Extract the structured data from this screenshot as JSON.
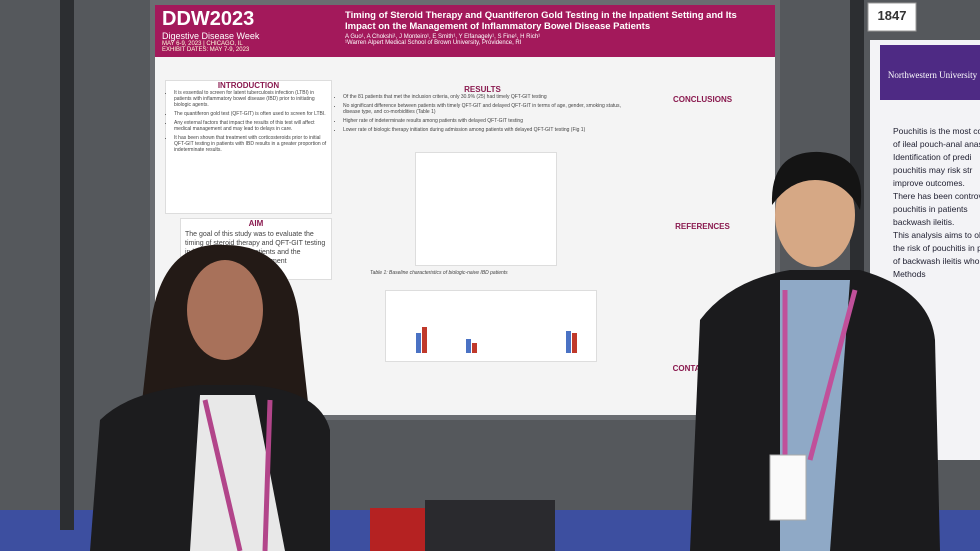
{
  "board_number": "1847",
  "poster": {
    "logo": {
      "brand": "DDW2023",
      "subtitle": "Digestive Disease Week",
      "dates": "MAY 6-9, 2023 | CHICAGO, IL",
      "exhibit": "EXHIBIT DATES: MAY 7-9, 2023"
    },
    "title": "Timing of Steroid Therapy and Quantiferon Gold Testing in the Inpatient Setting and Its Impact on the Management of Inflammatory Bowel Disease Patients",
    "authors": "A Guo¹, A Chokshi¹, J Monteiro¹, E Smith¹, Y Elfanagely¹, S Fine¹, H Rich¹",
    "affiliation": "¹Warren Alpert Medical School of Brown University, Providence, RI",
    "introduction": {
      "heading": "INTRODUCTION",
      "bullets": [
        "It is essential to screen for latent tuberculosis infection (LTBI) in patients with inflammatory bowel disease (IBD) prior to initiating biologic agents.",
        "The quantiferon gold test (QFT-GIT) is often used to screen for LTBI.",
        "Any external factors that impact the results of this test will affect medical management and may lead to delays in care.",
        "It has been shown that treatment with corticosteroids prior to initial QFT-GIT testing in patients with IBD results in a greater proportion of indeterminate results."
      ]
    },
    "aim": {
      "heading": "AIM",
      "text": "The goal of this study was to evaluate the timing of steroid therapy and QFT-GIT testing in biologic-naive IBD patients and the resulting impact on management"
    },
    "results": {
      "heading": "RESULTS",
      "bullets": [
        "Of the 81 patients that met the inclusion criteria, only 30.9% (25) had timely QFT-GIT testing",
        "No significant difference between patients with timely QFT-GIT and delayed QFT-GIT in terms of age, gender, smoking status, disease type, and co-morbidities (Table 1)",
        "Higher rate of indeterminate results among patients with delayed QFT-GIT testing",
        "Lower rate of biologic therapy initiation during admission among patients with delayed QFT-GIT testing (Fig 1)"
      ]
    },
    "table_caption": "Table 1: Baseline characteristics of biologic-naive IBD patients",
    "conclusions": {
      "heading": "CONCLUSIONS"
    },
    "references": {
      "heading": "REFERENCES"
    },
    "contact": {
      "heading": "CONTACT INFO"
    }
  },
  "neighbor_poster": {
    "institution": "Northwestern University",
    "lines": [
      "Pouchitis is the most co",
      "of ileal pouch-anal anast",
      "Identification of predi",
      "pouchitis may risk str",
      "improve outcomes.",
      "There has been controver",
      "pouchitis in patients",
      "backwash ileitis.",
      "This analysis aims to obje",
      "the risk of pouchitis in pati",
      "of backwash ileitis who und",
      "Methods"
    ]
  }
}
